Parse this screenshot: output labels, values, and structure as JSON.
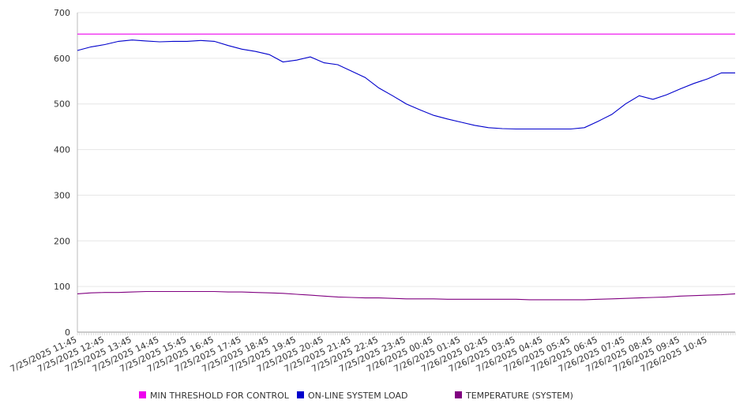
{
  "chart_data": {
    "type": "line",
    "title": "",
    "xlabel": "",
    "ylabel": "",
    "ylim": [
      0,
      700
    ],
    "yticks": [
      0,
      100,
      200,
      300,
      400,
      500,
      600,
      700
    ],
    "grid": true,
    "legend_position": "bottom",
    "x_start": "7/25/2025 11:45",
    "x_end": "7/26/2025 11:45",
    "x_tick_labels": [
      "7/25/2025 11:45",
      "7/25/2025 12:45",
      "7/25/2025 13:45",
      "7/25/2025 14:45",
      "7/25/2025 15:45",
      "7/25/2025 16:45",
      "7/25/2025 17:45",
      "7/25/2025 18:45",
      "7/25/2025 19:45",
      "7/25/2025 20:45",
      "7/25/2025 21:45",
      "7/25/2025 22:45",
      "7/25/2025 23:45",
      "7/26/2025 00:45",
      "7/26/2025 01:45",
      "7/26/2025 02:45",
      "7/26/2025 03:45",
      "7/26/2025 04:45",
      "7/26/2025 05:45",
      "7/26/2025 06:45",
      "7/26/2025 07:45",
      "7/26/2025 08:45",
      "7/26/2025 09:45",
      "7/26/2025 10:45"
    ],
    "x": [
      "11:45",
      "12:15",
      "12:45",
      "13:15",
      "13:45",
      "14:15",
      "14:45",
      "15:15",
      "15:45",
      "16:15",
      "16:45",
      "17:15",
      "17:45",
      "18:15",
      "18:45",
      "19:15",
      "19:45",
      "20:15",
      "20:45",
      "21:15",
      "21:45",
      "22:15",
      "22:45",
      "23:15",
      "23:45",
      "00:15",
      "00:45",
      "01:15",
      "01:45",
      "02:15",
      "02:45",
      "03:15",
      "03:45",
      "04:15",
      "04:45",
      "05:15",
      "05:45",
      "06:15",
      "06:45",
      "07:15",
      "07:45",
      "08:15",
      "08:45",
      "09:15",
      "09:45",
      "10:15",
      "10:45",
      "11:15",
      "11:45"
    ],
    "series": [
      {
        "name": "MIN THRESHOLD FOR CONTROL",
        "color": "#ee00ee",
        "values": [
          653,
          653,
          653,
          653,
          653,
          653,
          653,
          653,
          653,
          653,
          653,
          653,
          653,
          653,
          653,
          653,
          653,
          653,
          653,
          653,
          653,
          653,
          653,
          653,
          653,
          653,
          653,
          653,
          653,
          653,
          653,
          653,
          653,
          653,
          653,
          653,
          653,
          653,
          653,
          653,
          653,
          653,
          653,
          653,
          653,
          653,
          653,
          653,
          653
        ]
      },
      {
        "name": "ON-LINE SYSTEM LOAD",
        "color": "#0000cc",
        "values": [
          617,
          625,
          630,
          637,
          640,
          638,
          636,
          637,
          637,
          639,
          637,
          628,
          620,
          615,
          608,
          592,
          596,
          603,
          590,
          586,
          572,
          558,
          535,
          518,
          500,
          487,
          475,
          467,
          460,
          453,
          448,
          446,
          445,
          445,
          445,
          445,
          445,
          448,
          462,
          477,
          500,
          518,
          510,
          520,
          533,
          545,
          555,
          568,
          568
        ]
      },
      {
        "name": "TEMPERATURE (SYSTEM)",
        "color": "#800080",
        "values": [
          84,
          86,
          87,
          87,
          88,
          89,
          89,
          89,
          89,
          89,
          89,
          88,
          88,
          87,
          86,
          85,
          83,
          81,
          79,
          77,
          76,
          75,
          75,
          74,
          73,
          73,
          73,
          72,
          72,
          72,
          72,
          72,
          72,
          71,
          71,
          71,
          71,
          71,
          72,
          73,
          74,
          75,
          76,
          77,
          79,
          80,
          81,
          82,
          84
        ]
      }
    ]
  }
}
